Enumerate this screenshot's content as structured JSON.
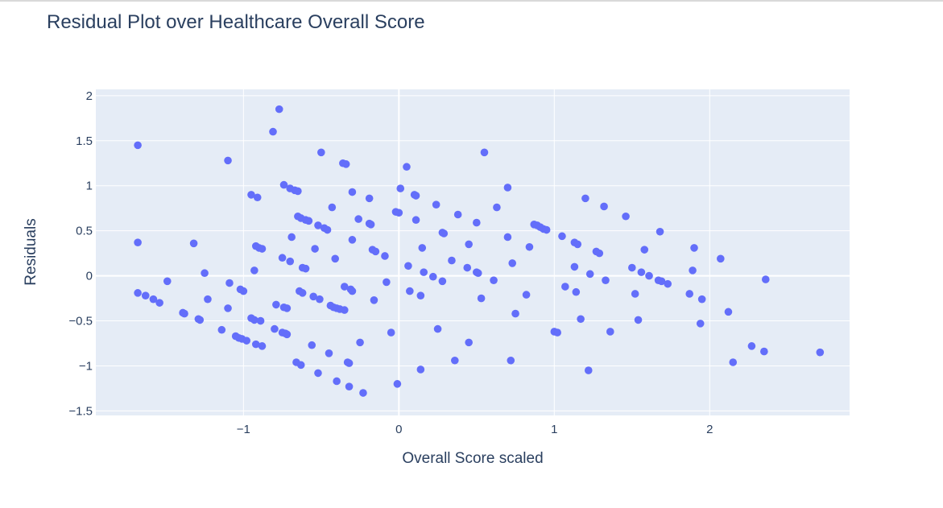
{
  "chart_data": {
    "type": "scatter",
    "title": "Residual Plot over Healthcare Overall Score",
    "xlabel": "Overall Score scaled",
    "ylabel": "Residuals",
    "xlim": [
      -1.95,
      2.9
    ],
    "ylim": [
      -1.55,
      2.07
    ],
    "xticks": [
      -1,
      0,
      1,
      2
    ],
    "xtick_labels": [
      "−1",
      "0",
      "1",
      "2"
    ],
    "yticks": [
      -1.5,
      -1,
      -0.5,
      0,
      0.5,
      1,
      1.5,
      2
    ],
    "ytick_labels": [
      "−1.5",
      "−1",
      "−0.5",
      "0",
      "0.5",
      "1",
      "1.5",
      "2"
    ],
    "grid": true,
    "colors": {
      "plot_bg": "#e5ecf6",
      "grid": "#ffffff",
      "marker": "#636efa",
      "text": "#2a3f5f"
    },
    "series": [
      {
        "points": [
          [
            -1.68,
            1.45
          ],
          [
            -1.68,
            0.37
          ],
          [
            -1.68,
            -0.19
          ],
          [
            -1.63,
            -0.22
          ],
          [
            -1.58,
            -0.26
          ],
          [
            -1.54,
            -0.3
          ],
          [
            -1.49,
            -0.06
          ],
          [
            -1.39,
            -0.41
          ],
          [
            -1.38,
            -0.42
          ],
          [
            -1.32,
            0.36
          ],
          [
            -1.29,
            -0.48
          ],
          [
            -1.28,
            -0.49
          ],
          [
            -1.25,
            0.03
          ],
          [
            -1.23,
            -0.26
          ],
          [
            -1.14,
            -0.6
          ],
          [
            -1.1,
            1.28
          ],
          [
            -1.09,
            -0.08
          ],
          [
            -1.1,
            -0.36
          ],
          [
            -1.05,
            -0.67
          ],
          [
            -1.03,
            -0.69
          ],
          [
            -1.02,
            -0.15
          ],
          [
            -1.01,
            -0.7
          ],
          [
            -1.0,
            -0.17
          ],
          [
            -0.98,
            -0.72
          ],
          [
            -0.95,
            0.9
          ],
          [
            -0.95,
            -0.47
          ],
          [
            -0.93,
            -0.49
          ],
          [
            -0.93,
            0.06
          ],
          [
            -0.92,
            0.33
          ],
          [
            -0.92,
            -0.76
          ],
          [
            -0.91,
            0.87
          ],
          [
            -0.9,
            0.31
          ],
          [
            -0.89,
            -0.5
          ],
          [
            -0.88,
            0.3
          ],
          [
            -0.88,
            -0.78
          ],
          [
            -0.81,
            1.6
          ],
          [
            -0.8,
            -0.59
          ],
          [
            -0.79,
            -0.32
          ],
          [
            -0.77,
            1.85
          ],
          [
            -0.75,
            0.2
          ],
          [
            -0.75,
            -0.63
          ],
          [
            -0.74,
            1.01
          ],
          [
            -0.74,
            -0.35
          ],
          [
            -0.73,
            -0.64
          ],
          [
            -0.72,
            -0.36
          ],
          [
            -0.72,
            -0.65
          ],
          [
            -0.7,
            0.16
          ],
          [
            -0.7,
            0.97
          ],
          [
            -0.69,
            0.43
          ],
          [
            -0.67,
            0.95
          ],
          [
            -0.66,
            -0.96
          ],
          [
            -0.65,
            0.94
          ],
          [
            -0.65,
            0.66
          ],
          [
            -0.64,
            -0.17
          ],
          [
            -0.63,
            0.64
          ],
          [
            -0.63,
            -0.99
          ],
          [
            -0.62,
            0.09
          ],
          [
            -0.62,
            -0.19
          ],
          [
            -0.6,
            0.08
          ],
          [
            -0.6,
            0.62
          ],
          [
            -0.58,
            0.61
          ],
          [
            -0.56,
            -0.77
          ],
          [
            -0.55,
            -0.23
          ],
          [
            -0.54,
            0.3
          ],
          [
            -0.52,
            0.56
          ],
          [
            -0.52,
            -1.08
          ],
          [
            -0.51,
            -0.26
          ],
          [
            -0.5,
            1.37
          ],
          [
            -0.48,
            0.53
          ],
          [
            -0.46,
            0.51
          ],
          [
            -0.45,
            -0.86
          ],
          [
            -0.44,
            -0.33
          ],
          [
            -0.43,
            0.76
          ],
          [
            -0.42,
            -0.35
          ],
          [
            -0.41,
            0.19
          ],
          [
            -0.4,
            -0.36
          ],
          [
            -0.4,
            -1.17
          ],
          [
            -0.38,
            -0.37
          ],
          [
            -0.36,
            1.25
          ],
          [
            -0.35,
            -0.12
          ],
          [
            -0.35,
            -0.38
          ],
          [
            -0.34,
            1.24
          ],
          [
            -0.33,
            -0.96
          ],
          [
            -0.32,
            -0.97
          ],
          [
            -0.32,
            -1.23
          ],
          [
            -0.31,
            -0.15
          ],
          [
            -0.3,
            0.4
          ],
          [
            -0.3,
            0.93
          ],
          [
            -0.3,
            -0.17
          ],
          [
            -0.26,
            0.63
          ],
          [
            -0.25,
            -0.74
          ],
          [
            -0.23,
            -1.3
          ],
          [
            -0.19,
            0.86
          ],
          [
            -0.19,
            0.58
          ],
          [
            -0.18,
            0.57
          ],
          [
            -0.17,
            0.29
          ],
          [
            -0.16,
            -0.27
          ],
          [
            -0.15,
            0.27
          ],
          [
            -0.09,
            0.22
          ],
          [
            -0.08,
            -0.07
          ],
          [
            -0.05,
            -0.63
          ],
          [
            -0.02,
            0.71
          ],
          [
            -0.01,
            -1.2
          ],
          [
            0.0,
            0.7
          ],
          [
            0.01,
            0.97
          ],
          [
            0.05,
            1.21
          ],
          [
            0.06,
            0.11
          ],
          [
            0.07,
            -0.17
          ],
          [
            0.1,
            0.9
          ],
          [
            0.11,
            0.89
          ],
          [
            0.11,
            0.62
          ],
          [
            0.14,
            -0.22
          ],
          [
            0.14,
            -1.04
          ],
          [
            0.15,
            0.31
          ],
          [
            0.16,
            0.04
          ],
          [
            0.22,
            -0.01
          ],
          [
            0.24,
            0.79
          ],
          [
            0.25,
            -0.59
          ],
          [
            0.28,
            -0.06
          ],
          [
            0.28,
            0.48
          ],
          [
            0.29,
            0.47
          ],
          [
            0.34,
            0.17
          ],
          [
            0.36,
            -0.94
          ],
          [
            0.38,
            0.68
          ],
          [
            0.44,
            0.09
          ],
          [
            0.45,
            0.35
          ],
          [
            0.45,
            -0.74
          ],
          [
            0.5,
            0.59
          ],
          [
            0.5,
            0.04
          ],
          [
            0.51,
            0.03
          ],
          [
            0.53,
            -0.25
          ],
          [
            0.55,
            1.37
          ],
          [
            0.61,
            -0.05
          ],
          [
            0.63,
            0.76
          ],
          [
            0.7,
            0.98
          ],
          [
            0.7,
            0.43
          ],
          [
            0.72,
            -0.94
          ],
          [
            0.73,
            0.14
          ],
          [
            0.75,
            -0.42
          ],
          [
            0.82,
            -0.21
          ],
          [
            0.84,
            0.32
          ],
          [
            0.87,
            0.57
          ],
          [
            0.89,
            0.56
          ],
          [
            0.91,
            0.54
          ],
          [
            0.93,
            0.52
          ],
          [
            0.95,
            0.51
          ],
          [
            1.0,
            -0.62
          ],
          [
            1.02,
            -0.63
          ],
          [
            1.05,
            0.44
          ],
          [
            1.07,
            -0.12
          ],
          [
            1.13,
            0.37
          ],
          [
            1.13,
            0.1
          ],
          [
            1.14,
            -0.18
          ],
          [
            1.15,
            0.35
          ],
          [
            1.17,
            -0.48
          ],
          [
            1.2,
            0.86
          ],
          [
            1.22,
            -1.05
          ],
          [
            1.23,
            0.02
          ],
          [
            1.27,
            0.27
          ],
          [
            1.29,
            0.25
          ],
          [
            1.32,
            0.77
          ],
          [
            1.33,
            -0.05
          ],
          [
            1.36,
            -0.62
          ],
          [
            1.46,
            0.66
          ],
          [
            1.5,
            0.09
          ],
          [
            1.52,
            -0.2
          ],
          [
            1.54,
            -0.49
          ],
          [
            1.56,
            0.04
          ],
          [
            1.58,
            0.29
          ],
          [
            1.61,
            0.0
          ],
          [
            1.67,
            -0.05
          ],
          [
            1.68,
            0.49
          ],
          [
            1.69,
            -0.06
          ],
          [
            1.73,
            -0.09
          ],
          [
            1.87,
            -0.2
          ],
          [
            1.89,
            0.06
          ],
          [
            1.9,
            0.31
          ],
          [
            1.94,
            -0.53
          ],
          [
            1.95,
            -0.26
          ],
          [
            2.07,
            0.19
          ],
          [
            2.12,
            -0.4
          ],
          [
            2.15,
            -0.96
          ],
          [
            2.27,
            -0.78
          ],
          [
            2.35,
            -0.84
          ],
          [
            2.36,
            -0.04
          ],
          [
            2.71,
            -0.85
          ]
        ]
      }
    ]
  }
}
